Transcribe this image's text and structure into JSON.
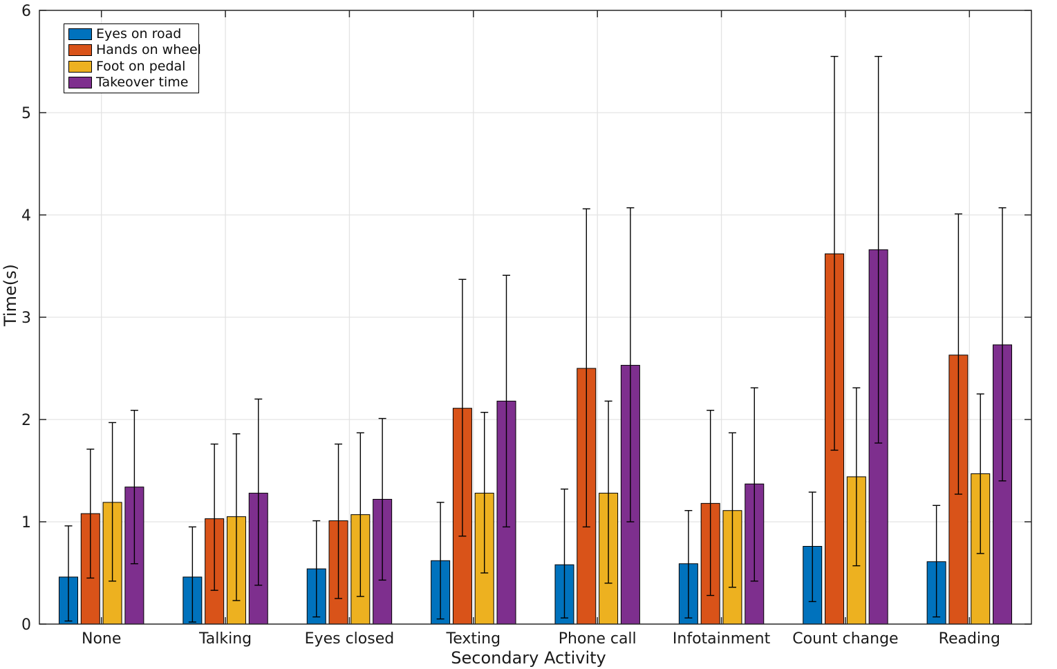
{
  "figure": {
    "background": "#ffffff",
    "axis_color": "#262626",
    "grid_color": "#e3e3e3",
    "errorbar_color": "#000000"
  },
  "chart_data": {
    "type": "bar",
    "title": "",
    "xlabel": "Secondary Activity",
    "ylabel": "Time(s)",
    "ylim": [
      0,
      6
    ],
    "yticks": [
      0,
      1,
      2,
      3,
      4,
      5,
      6
    ],
    "grid": true,
    "legend_position": "top-left",
    "categories": [
      "None",
      "Talking",
      "Eyes closed",
      "Texting",
      "Phone call",
      "Infotainment",
      "Count change",
      "Reading"
    ],
    "series": [
      {
        "name": "Eyes on road",
        "color": "#0072BD",
        "values": [
          0.46,
          0.46,
          0.54,
          0.62,
          0.58,
          0.59,
          0.76,
          0.61
        ],
        "err_low": [
          0.03,
          0.02,
          0.07,
          0.05,
          0.06,
          0.06,
          0.22,
          0.07
        ],
        "err_high": [
          0.96,
          0.95,
          1.01,
          1.19,
          1.32,
          1.11,
          1.29,
          1.16
        ]
      },
      {
        "name": "Hands on wheel",
        "color": "#D95319",
        "values": [
          1.08,
          1.03,
          1.01,
          2.11,
          2.5,
          1.18,
          3.62,
          2.63
        ],
        "err_low": [
          0.45,
          0.33,
          0.25,
          0.86,
          0.95,
          0.28,
          1.7,
          1.27
        ],
        "err_high": [
          1.71,
          1.76,
          1.76,
          3.37,
          4.06,
          2.09,
          5.55,
          4.01
        ]
      },
      {
        "name": "Foot on pedal",
        "color": "#EDB120",
        "values": [
          1.19,
          1.05,
          1.07,
          1.28,
          1.28,
          1.11,
          1.44,
          1.47
        ],
        "err_low": [
          0.42,
          0.23,
          0.27,
          0.5,
          0.4,
          0.36,
          0.57,
          0.69
        ],
        "err_high": [
          1.97,
          1.86,
          1.87,
          2.07,
          2.18,
          1.87,
          2.31,
          2.25
        ]
      },
      {
        "name": "Takeover time",
        "color": "#7E2F8E",
        "values": [
          1.34,
          1.28,
          1.22,
          2.18,
          2.53,
          1.37,
          3.66,
          2.73
        ],
        "err_low": [
          0.59,
          0.38,
          0.43,
          0.95,
          1.0,
          0.42,
          1.77,
          1.4
        ],
        "err_high": [
          2.09,
          2.2,
          2.01,
          3.41,
          4.07,
          2.31,
          5.55,
          4.07
        ]
      }
    ]
  }
}
